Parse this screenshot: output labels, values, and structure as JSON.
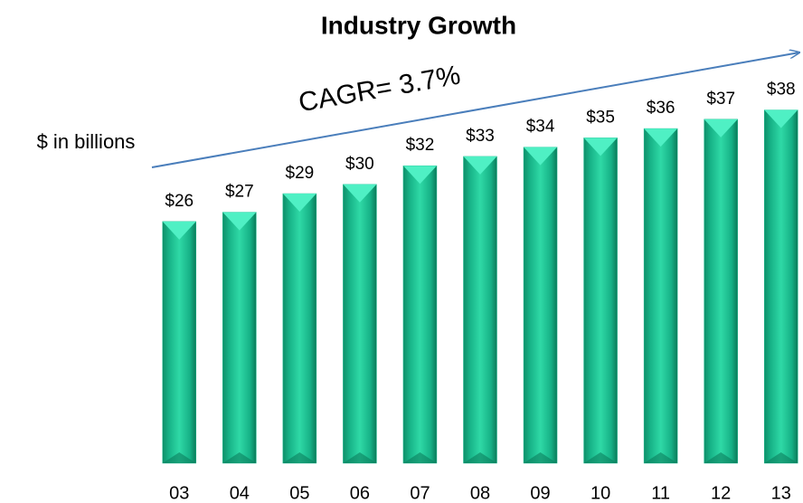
{
  "chart_data": {
    "type": "bar",
    "title": "Industry Growth",
    "y_label": "$ in billions",
    "annotation": "CAGR= 3.7%",
    "categories": [
      "03",
      "04",
      "05",
      "06",
      "07",
      "08",
      "09",
      "10",
      "11",
      "12",
      "13"
    ],
    "values": [
      26,
      27,
      29,
      30,
      32,
      33,
      34,
      35,
      36,
      37,
      38
    ],
    "value_labels": [
      "$26",
      "$27",
      "$29",
      "$30",
      "$32",
      "$33",
      "$34",
      "$35",
      "$36",
      "$37",
      "$38"
    ],
    "color": "#17b78c",
    "ylim": [
      0,
      40
    ],
    "grid": false
  }
}
